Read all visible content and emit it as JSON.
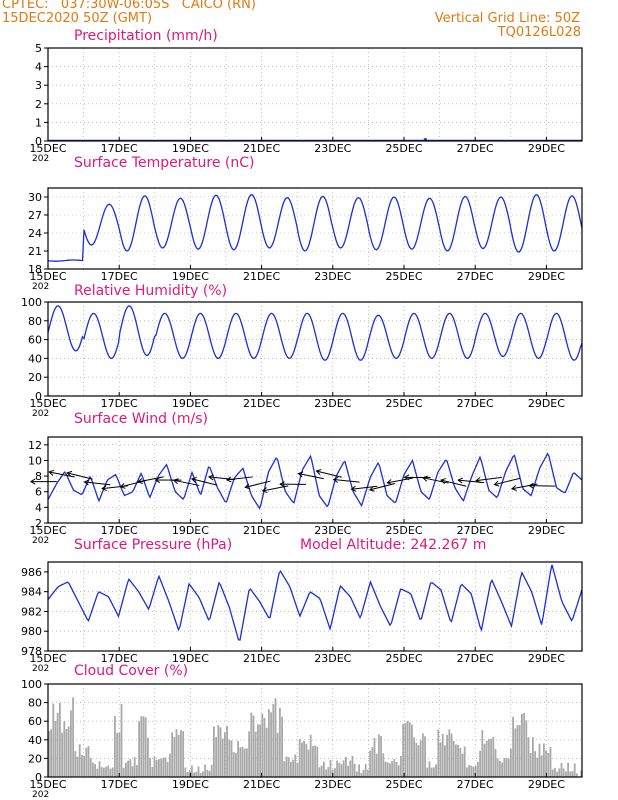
{
  "header": {
    "line1_left": "CPTEC:   037:30W-06:05S   CAICO (RN)",
    "line2_left": "15DEC2020 50Z (GMT)",
    "line2_right": "Vertical Grid Line: 50Z",
    "line3_right": "TQ0126L028"
  },
  "colors": {
    "header": "#e07a12",
    "title": "#e0187a",
    "line": "#1a2fd8",
    "bar": "#a9a9a9",
    "grid": "#9a9a9a"
  },
  "x_tick_labels": [
    "15DEC",
    "17DEC",
    "19DEC",
    "21DEC",
    "23DEC",
    "25DEC",
    "27DEC",
    "29DEC"
  ],
  "year_stub": "202",
  "chart_data": [
    {
      "type": "bar",
      "title": "Precipitation (mm/h)",
      "x_unit": "day of December 2020",
      "ylim": [
        0,
        5
      ],
      "yticks": [
        0,
        1,
        2,
        3,
        4,
        5
      ],
      "grid": true,
      "x": [
        25.6
      ],
      "values": [
        0.15
      ]
    },
    {
      "type": "line",
      "title": "Surface Temperature (nC)",
      "ylim": [
        18,
        31.5
      ],
      "yticks": [
        18,
        21,
        24,
        27,
        30
      ],
      "grid": true,
      "daily": {
        "max": [
          19.5,
          28.8,
          30.2,
          29.8,
          30.3,
          30.4,
          29.9,
          30.1,
          29.9,
          30.0,
          29.8,
          30.1,
          30.0,
          30.4,
          30.2,
          30.1
        ],
        "min": [
          19.3,
          22.0,
          21.0,
          21.5,
          21.3,
          21.2,
          21.5,
          21.0,
          21.5,
          21.2,
          21.3,
          21.0,
          21.4,
          20.8,
          21.0,
          21.2
        ]
      }
    },
    {
      "type": "line",
      "title": "Relative Humidity (%)",
      "ylim": [
        0,
        100
      ],
      "yticks": [
        0,
        20,
        40,
        60,
        80,
        100
      ],
      "grid": true,
      "daily": {
        "max": [
          96,
          88,
          96,
          88,
          88,
          88,
          88,
          88,
          88,
          86,
          88,
          88,
          88,
          88,
          88,
          83
        ],
        "min": [
          48,
          40,
          43,
          40,
          40,
          40,
          40,
          38,
          38,
          40,
          40,
          40,
          42,
          40,
          38,
          38
        ]
      }
    },
    {
      "type": "line",
      "title": "Surface Wind (m/s)",
      "ylim": [
        2,
        13
      ],
      "yticks": [
        2,
        4,
        6,
        8,
        10,
        12
      ],
      "grid": true,
      "speed": [
        5.0,
        7.0,
        8.6,
        6.2,
        5.6,
        8.0,
        4.8,
        7.5,
        8.2,
        5.5,
        6.0,
        8.4,
        5.2,
        8.0,
        9.5,
        6.0,
        5.0,
        8.5,
        5.5,
        9.4,
        6.5,
        4.5,
        7.8,
        9.0,
        5.5,
        3.8,
        8.5,
        10.5,
        6.0,
        4.5,
        8.8,
        10.6,
        5.5,
        4.0,
        8.0,
        10.0,
        6.0,
        4.2,
        7.8,
        9.8,
        5.5,
        4.5,
        8.2,
        10.0,
        6.0,
        5.0,
        8.5,
        10.2,
        6.5,
        4.8,
        8.0,
        10.5,
        6.2,
        5.2,
        8.6,
        10.8,
        6.4,
        5.5,
        9.0,
        11.0,
        6.5,
        5.8,
        8.5,
        7.5
      ]
    },
    {
      "type": "line",
      "title": "Surface Pressure (hPa)",
      "annotation": "Model Altitude: 242.267 m",
      "ylim": [
        978,
        987
      ],
      "yticks": [
        978,
        980,
        982,
        984,
        986
      ],
      "grid": true,
      "samples": [
        983.2,
        984.5,
        985.0,
        983.0,
        981.0,
        984.0,
        983.5,
        981.5,
        985.3,
        984.0,
        982.2,
        985.6,
        983.0,
        980.0,
        984.8,
        983.4,
        981.0,
        985.0,
        982.4,
        978.8,
        984.4,
        983.0,
        981.2,
        986.2,
        984.5,
        981.5,
        984.0,
        983.3,
        980.2,
        984.6,
        983.5,
        981.3,
        985.0,
        982.5,
        980.5,
        984.3,
        983.8,
        981.0,
        985.0,
        984.2,
        980.8,
        984.8,
        983.8,
        980.0,
        985.3,
        983.0,
        980.5,
        986.0,
        984.0,
        980.6,
        986.8,
        983.0,
        981.0,
        984.2
      ]
    },
    {
      "type": "bar",
      "title": "Cloud Cover (%)",
      "ylim": [
        0,
        100
      ],
      "yticks": [
        0,
        20,
        40,
        60,
        80,
        100
      ],
      "grid": true,
      "segments": [
        {
          "from": 15.0,
          "to": 15.7,
          "level": 85
        },
        {
          "from": 15.7,
          "to": 16.2,
          "level": 35
        },
        {
          "from": 16.2,
          "to": 16.8,
          "level": 15
        },
        {
          "from": 16.8,
          "to": 17.1,
          "level": 80
        },
        {
          "from": 17.1,
          "to": 17.5,
          "level": 20
        },
        {
          "from": 17.5,
          "to": 17.8,
          "level": 70
        },
        {
          "from": 17.8,
          "to": 18.4,
          "level": 25
        },
        {
          "from": 18.4,
          "to": 18.8,
          "level": 55
        },
        {
          "from": 18.8,
          "to": 19.6,
          "level": 10
        },
        {
          "from": 19.6,
          "to": 20.1,
          "level": 60
        },
        {
          "from": 20.1,
          "to": 20.6,
          "level": 40
        },
        {
          "from": 20.6,
          "to": 21.6,
          "level": 85
        },
        {
          "from": 21.6,
          "to": 22.0,
          "level": 25
        },
        {
          "from": 22.0,
          "to": 22.6,
          "level": 50
        },
        {
          "from": 22.6,
          "to": 23.2,
          "level": 15
        },
        {
          "from": 23.2,
          "to": 23.6,
          "level": 25
        },
        {
          "from": 23.6,
          "to": 24.0,
          "level": 10
        },
        {
          "from": 24.0,
          "to": 24.4,
          "level": 45
        },
        {
          "from": 24.4,
          "to": 24.9,
          "level": 20
        },
        {
          "from": 24.9,
          "to": 25.6,
          "level": 65
        },
        {
          "from": 25.6,
          "to": 25.9,
          "level": 15
        },
        {
          "from": 25.9,
          "to": 26.4,
          "level": 55
        },
        {
          "from": 26.4,
          "to": 26.7,
          "level": 40
        },
        {
          "from": 26.7,
          "to": 27.1,
          "level": 15
        },
        {
          "from": 27.1,
          "to": 27.6,
          "level": 55
        },
        {
          "from": 27.6,
          "to": 28.0,
          "level": 30
        },
        {
          "from": 28.0,
          "to": 28.5,
          "level": 75
        },
        {
          "from": 28.5,
          "to": 29.1,
          "level": 40
        },
        {
          "from": 29.1,
          "to": 29.8,
          "level": 12
        },
        {
          "from": 29.8,
          "to": 30.0,
          "level": 5
        }
      ]
    }
  ]
}
